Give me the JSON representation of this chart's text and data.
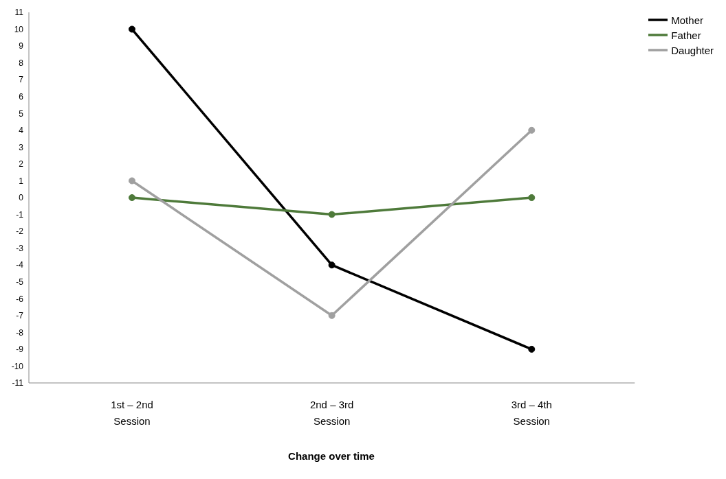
{
  "chart_data": {
    "type": "line",
    "xlabel": "Change over time",
    "categories": [
      "1st – 2nd Session",
      "2nd – 3rd Session",
      "3rd – 4th Session"
    ],
    "series": [
      {
        "name": "Mother",
        "color": "#000000",
        "values": [
          10,
          -4,
          -9
        ]
      },
      {
        "name": "Father",
        "color": "#4e7a3a",
        "values": [
          0,
          -1,
          0
        ]
      },
      {
        "name": "Daughter",
        "color": "#a0a0a0",
        "values": [
          1,
          -7,
          4
        ]
      }
    ],
    "ylim": [
      -11,
      11
    ],
    "yticks": [
      -11,
      -10,
      -9,
      -8,
      -7,
      -6,
      -5,
      -4,
      -3,
      -2,
      -1,
      0,
      1,
      2,
      3,
      4,
      5,
      6,
      7,
      8,
      9,
      10,
      11
    ],
    "grid": false,
    "legend": "top right",
    "marker": "circle",
    "line_style": "solid"
  }
}
